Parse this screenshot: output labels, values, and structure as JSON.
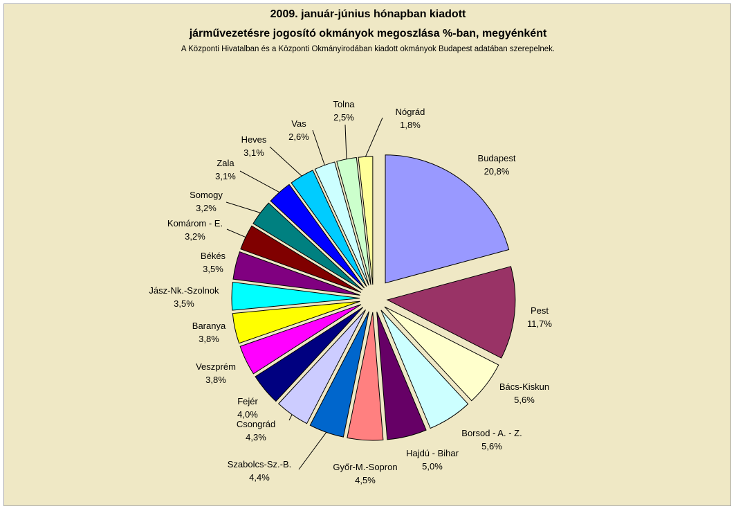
{
  "chart_data": {
    "type": "pie",
    "title_lines": [
      "2009. január-június hónapban kiadott",
      "járművezetésre jogosító okmányok megoszlása %-ban, megyénként"
    ],
    "subtitle": "A Központi Hivatalban és a Központi Okmányirodában kiadott okmányok Budapest adatában szerepelnek.",
    "value_unit": "%",
    "slices": [
      {
        "label": "Budapest",
        "value": 20.8,
        "value_label": "20,8%",
        "color": "#9999ff"
      },
      {
        "label": "Pest",
        "value": 11.7,
        "value_label": "11,7%",
        "color": "#993366"
      },
      {
        "label": "Bács-Kiskun",
        "value": 5.6,
        "value_label": "5,6%",
        "color": "#ffffcc"
      },
      {
        "label": "Borsod - A. - Z.",
        "value": 5.6,
        "value_label": "5,6%",
        "color": "#ccffff"
      },
      {
        "label": "Hajdú - Bihar",
        "value": 5.0,
        "value_label": "5,0%",
        "color": "#660066"
      },
      {
        "label": "Győr-M.-Sopron",
        "value": 4.5,
        "value_label": "4,5%",
        "color": "#ff8080"
      },
      {
        "label": "Szabolcs-Sz.-B.",
        "value": 4.4,
        "value_label": "4,4%",
        "color": "#0066cc"
      },
      {
        "label": "Csongrád",
        "value": 4.3,
        "value_label": "4,3%",
        "color": "#ccccff"
      },
      {
        "label": "Fejér",
        "value": 4.0,
        "value_label": "4,0%",
        "color": "#000080"
      },
      {
        "label": "Veszprém",
        "value": 3.8,
        "value_label": "3,8%",
        "color": "#ff00ff"
      },
      {
        "label": "Baranya",
        "value": 3.8,
        "value_label": "3,8%",
        "color": "#ffff00"
      },
      {
        "label": "Jász-Nk.-Szolnok",
        "value": 3.5,
        "value_label": "3,5%",
        "color": "#00ffff"
      },
      {
        "label": "Békés",
        "value": 3.5,
        "value_label": "3,5%",
        "color": "#800080"
      },
      {
        "label": "Komárom - E.",
        "value": 3.2,
        "value_label": "3,2%",
        "color": "#800000"
      },
      {
        "label": "Somogy",
        "value": 3.2,
        "value_label": "3,2%",
        "color": "#008080"
      },
      {
        "label": "Zala",
        "value": 3.1,
        "value_label": "3,1%",
        "color": "#0000ff"
      },
      {
        "label": "Heves",
        "value": 3.1,
        "value_label": "3,1%",
        "color": "#00ccff"
      },
      {
        "label": "Vas",
        "value": 2.6,
        "value_label": "2,6%",
        "color": "#ccffff"
      },
      {
        "label": "Tolna",
        "value": 2.5,
        "value_label": "2,5%",
        "color": "#ccffcc"
      },
      {
        "label": "Nógrád",
        "value": 1.8,
        "value_label": "1,8%",
        "color": "#ffff99"
      }
    ],
    "legend": "none",
    "exploded": true,
    "start_angle": "12 o'clock, clockwise",
    "background_color": "#efe8c5"
  }
}
